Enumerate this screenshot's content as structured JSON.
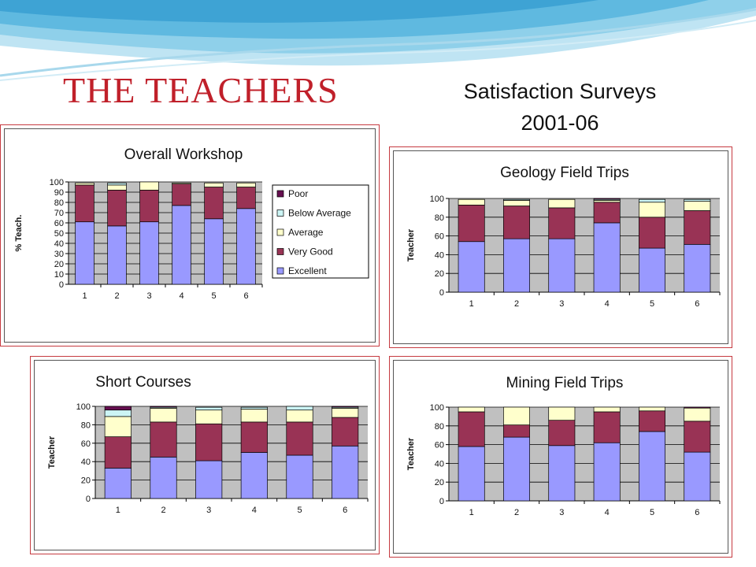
{
  "header": {
    "title": "THE TEACHERS",
    "subtitle_line1": "Satisfaction Surveys",
    "subtitle_line2": "2001-06"
  },
  "colors": {
    "poor": "#660f50",
    "below_average": "#ccf5f5",
    "average": "#ffffcc",
    "very_good": "#993355",
    "excellent": "#9999ff",
    "plot_bg": "#c0c0c0",
    "panel_border": "#c63a40"
  },
  "chart_data": [
    {
      "type": "bar",
      "stacked": true,
      "title": "Overall Workshop",
      "xlabel": "",
      "ylabel": "% Teach.",
      "ylim": [
        0,
        100
      ],
      "ytick_step": 10,
      "grid": true,
      "legend": "right",
      "categories": [
        "1",
        "2",
        "3",
        "4",
        "5",
        "6"
      ],
      "series": [
        {
          "name": "Excellent",
          "color": "#9999ff",
          "values": [
            61,
            57,
            61,
            77,
            64,
            74
          ]
        },
        {
          "name": "Very Good",
          "color": "#993355",
          "values": [
            36,
            35,
            31,
            21,
            31,
            21
          ]
        },
        {
          "name": "Average",
          "color": "#ffffcc",
          "values": [
            2,
            5,
            8,
            1,
            4,
            4
          ]
        },
        {
          "name": "Below Average",
          "color": "#ccf5f5",
          "values": [
            0,
            2,
            0,
            0,
            0,
            0
          ]
        },
        {
          "name": "Poor",
          "color": "#660f50",
          "values": [
            0,
            0,
            0,
            0,
            0,
            0
          ]
        }
      ]
    },
    {
      "type": "bar",
      "stacked": true,
      "title": "Geology Field Trips",
      "xlabel": "",
      "ylabel": "Teacher",
      "ylim": [
        0,
        100
      ],
      "ytick_step": 20,
      "grid": true,
      "categories": [
        "1",
        "2",
        "3",
        "4",
        "5",
        "6"
      ],
      "series": [
        {
          "name": "Excellent",
          "color": "#9999ff",
          "values": [
            54,
            57,
            57,
            74,
            47,
            51
          ]
        },
        {
          "name": "Very Good",
          "color": "#993355",
          "values": [
            39,
            35,
            33,
            22,
            33,
            36
          ]
        },
        {
          "name": "Average",
          "color": "#ffffcc",
          "values": [
            6,
            6,
            9,
            2,
            16,
            10
          ]
        },
        {
          "name": "Below Average",
          "color": "#ccf5f5",
          "values": [
            0,
            1,
            0,
            1,
            3,
            2
          ]
        },
        {
          "name": "Poor",
          "color": "#660f50",
          "values": [
            0,
            0,
            0,
            1,
            0,
            0
          ]
        }
      ]
    },
    {
      "type": "bar",
      "stacked": true,
      "title": "Short Courses",
      "xlabel": "",
      "ylabel": "Teacher",
      "ylim": [
        0,
        100
      ],
      "ytick_step": 20,
      "grid": true,
      "categories": [
        "1",
        "2",
        "3",
        "4",
        "5",
        "6"
      ],
      "series": [
        {
          "name": "Excellent",
          "color": "#9999ff",
          "values": [
            33,
            45,
            41,
            50,
            47,
            57
          ]
        },
        {
          "name": "Very Good",
          "color": "#993355",
          "values": [
            34,
            38,
            40,
            33,
            36,
            31
          ]
        },
        {
          "name": "Average",
          "color": "#ffffcc",
          "values": [
            22,
            15,
            15,
            14,
            13,
            10
          ]
        },
        {
          "name": "Below Average",
          "color": "#ccf5f5",
          "values": [
            7,
            1,
            3,
            2,
            4,
            1
          ]
        },
        {
          "name": "Poor",
          "color": "#660f50",
          "values": [
            4,
            1,
            0,
            0,
            0,
            1
          ]
        }
      ]
    },
    {
      "type": "bar",
      "stacked": true,
      "title": "Mining Field Trips",
      "xlabel": "",
      "ylabel": "Teacher",
      "ylim": [
        0,
        100
      ],
      "ytick_step": 20,
      "grid": true,
      "categories": [
        "1",
        "2",
        "3",
        "4",
        "5",
        "6"
      ],
      "series": [
        {
          "name": "Excellent",
          "color": "#9999ff",
          "values": [
            58,
            68,
            59,
            62,
            74,
            52
          ]
        },
        {
          "name": "Very Good",
          "color": "#993355",
          "values": [
            37,
            13,
            27,
            33,
            22,
            33
          ]
        },
        {
          "name": "Average",
          "color": "#ffffcc",
          "values": [
            5,
            19,
            14,
            5,
            4,
            14
          ]
        },
        {
          "name": "Below Average",
          "color": "#ccf5f5",
          "values": [
            0,
            0,
            0,
            0,
            0,
            0
          ]
        },
        {
          "name": "Poor",
          "color": "#660f50",
          "values": [
            0,
            0,
            0,
            0,
            0,
            1
          ]
        }
      ]
    }
  ]
}
